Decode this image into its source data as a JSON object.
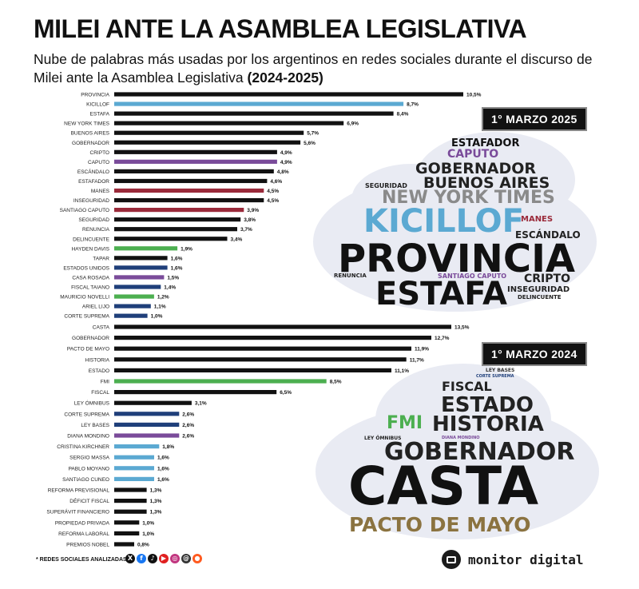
{
  "header": {
    "title": "MILEI ANTE LA ASAMBLEA LEGISLATIVA",
    "subtitle": "Nube de palabras más usadas por los argentinos en redes sociales durante el discurso de Milei ante la Asamblea Legislativa",
    "subtitle_years": "(2024-2025)"
  },
  "colors": {
    "default_bar": "#111111",
    "blue": "#5ba9d2",
    "purple": "#7a4b9a",
    "red": "#9a2a3a",
    "green": "#4caf50",
    "navy": "#1f3f7a",
    "cloud_bg": "#e9ebf3",
    "casta_brown": "#8b7340"
  },
  "chart_data": [
    {
      "type": "bar",
      "orientation": "horizontal",
      "period": "1° MARZO 2025",
      "xlim": [
        0,
        10.5
      ],
      "unit": "%",
      "categories": [
        "PROVINCIA",
        "KICILLOF",
        "ESTAFA",
        "NEW YORK TIMES",
        "BUENOS AIRES",
        "GOBERNADOR",
        "CRIPTO",
        "CAPUTO",
        "ESCÁNDALO",
        "ESTAFADOR",
        "MANES",
        "INSEGURIDAD",
        "SANTIAGO CAPUTO",
        "SEGURIDAD",
        "RENUNCIA",
        "DELINCUENTE",
        "HAYDEN DAVIS",
        "TAPAR",
        "ESTADOS UNIDOS",
        "CASA ROSADA",
        "FISCAL TAIANO",
        "MAURICIO NOVELLI",
        "ARIEL LIJO",
        "CORTE SUPREMA"
      ],
      "values": [
        10.5,
        8.7,
        8.4,
        6.9,
        5.7,
        5.6,
        4.9,
        4.9,
        4.8,
        4.6,
        4.5,
        4.5,
        3.9,
        3.8,
        3.7,
        3.4,
        1.9,
        1.6,
        1.6,
        1.5,
        1.4,
        1.2,
        1.1,
        1.0
      ],
      "value_labels": [
        "10,5%",
        "8,7%",
        "8,4%",
        "6,9%",
        "5,7%",
        "5,6%",
        "4,9%",
        "4,9%",
        "4,8%",
        "4,6%",
        "4,5%",
        "4,5%",
        "3,9%",
        "3,8%",
        "3,7%",
        "3,4%",
        "1,9%",
        "1,6%",
        "1,6%",
        "1,5%",
        "1,4%",
        "1,2%",
        "1,1%",
        "1,0%"
      ],
      "bar_colors": [
        "black",
        "blue",
        "black",
        "black",
        "black",
        "black",
        "black",
        "purple",
        "black",
        "black",
        "red",
        "black",
        "red",
        "black",
        "black",
        "black",
        "green",
        "black",
        "navy",
        "purple",
        "navy",
        "green",
        "navy",
        "navy"
      ]
    },
    {
      "type": "bar",
      "orientation": "horizontal",
      "period": "1° MARZO 2024",
      "xlim": [
        0,
        13.5
      ],
      "unit": "%",
      "categories": [
        "CASTA",
        "GOBERNADOR",
        "PACTO DE MAYO",
        "HISTORIA",
        "ESTADO",
        "FMI",
        "FISCAL",
        "LEY ÓMNIBUS",
        "CORTE SUPREMA",
        "LEY BASES",
        "DIANA MONDINO",
        "CRISTINA KIRCHNER",
        "SERGIO MASSA",
        "PABLO MOYANO",
        "SANTIAGO CUNEO",
        "REFORMA PREVISIONAL",
        "DÉFICIT FISCAL",
        "SUPERÁVIT FINANCIERO",
        "PROPIEDAD PRIVADA",
        "REFORMA LABORAL",
        "PREMIOS NOBEL"
      ],
      "values": [
        13.5,
        12.7,
        11.9,
        11.7,
        11.1,
        8.5,
        6.5,
        3.1,
        2.6,
        2.6,
        2.6,
        1.8,
        1.6,
        1.6,
        1.6,
        1.3,
        1.3,
        1.3,
        1.0,
        1.0,
        0.8
      ],
      "value_labels": [
        "13,5%",
        "12,7%",
        "11,9%",
        "11,7%",
        "11,1%",
        "8,5%",
        "6,5%",
        "3,1%",
        "2,6%",
        "2,6%",
        "2,6%",
        "1,8%",
        "1,6%",
        "1,6%",
        "1,6%",
        "1,3%",
        "1,3%",
        "1,3%",
        "1,0%",
        "1,0%",
        "0,8%"
      ],
      "bar_colors": [
        "black",
        "black",
        "black",
        "black",
        "black",
        "green",
        "black",
        "black",
        "navy",
        "navy",
        "purple",
        "blue",
        "blue",
        "blue",
        "blue",
        "black",
        "black",
        "black",
        "black",
        "black",
        "black"
      ]
    }
  ],
  "clouds": {
    "cloud_2025": {
      "badge": "1° MARZO 2025",
      "words": [
        {
          "text": "ESTAFADOR",
          "color": "#111111",
          "size": 13
        },
        {
          "text": "CAPUTO",
          "color": "#7a4b9a",
          "size": 14
        },
        {
          "text": "GOBERNADOR",
          "color": "#222222",
          "size": 19
        },
        {
          "text": "BUENOS AIRES",
          "color": "#222222",
          "size": 19
        },
        {
          "text": "SEGURIDAD",
          "color": "#222222",
          "size": 8
        },
        {
          "text": "NEW YORK TIMES",
          "color": "#8a8a8a",
          "size": 22
        },
        {
          "text": "KICILLOF",
          "color": "#5ba9d2",
          "size": 40
        },
        {
          "text": "MANES",
          "color": "#9a2a3a",
          "size": 10
        },
        {
          "text": "ESCÁNDALO",
          "color": "#222222",
          "size": 12
        },
        {
          "text": "PROVINCIA",
          "color": "#111111",
          "size": 48
        },
        {
          "text": "RENUNCIA",
          "color": "#222222",
          "size": 7
        },
        {
          "text": "SANTIAGO CAPUTO",
          "color": "#7a4b9a",
          "size": 8
        },
        {
          "text": "CRIPTO",
          "color": "#222222",
          "size": 14
        },
        {
          "text": "INSEGURIDAD",
          "color": "#222222",
          "size": 10
        },
        {
          "text": "ESTAFA",
          "color": "#111111",
          "size": 40
        },
        {
          "text": "DELINCUENTE",
          "color": "#222222",
          "size": 7
        }
      ]
    },
    "cloud_2024": {
      "badge": "1° MARZO 2024",
      "words": [
        {
          "text": "LEY BASES",
          "color": "#333333",
          "size": 6
        },
        {
          "text": "CORTE SUPREMA",
          "color": "#1f3f7a",
          "size": 5
        },
        {
          "text": "FISCAL",
          "color": "#222222",
          "size": 16
        },
        {
          "text": "ESTADO",
          "color": "#222222",
          "size": 26
        },
        {
          "text": "FMI",
          "color": "#4caf50",
          "size": 22
        },
        {
          "text": "HISTORIA",
          "color": "#222222",
          "size": 26
        },
        {
          "text": "LEY ÓMNIBUS",
          "color": "#222222",
          "size": 6
        },
        {
          "text": "DIANA MONDINO",
          "color": "#7a4b9a",
          "size": 5
        },
        {
          "text": "GOBERNADOR",
          "color": "#222222",
          "size": 30
        },
        {
          "text": "CASTA",
          "color": "#111111",
          "size": 66
        },
        {
          "text": "PACTO DE MAYO",
          "color": "#8b7340",
          "size": 25
        }
      ]
    }
  },
  "footer": {
    "note": "* REDES SOCIALES ANALIZADAS",
    "social_icons": [
      {
        "name": "x-icon",
        "glyph": "X",
        "color": "#111111"
      },
      {
        "name": "facebook-icon",
        "glyph": "f",
        "color": "#1877f2"
      },
      {
        "name": "tiktok-icon",
        "glyph": "♪",
        "color": "#111111"
      },
      {
        "name": "youtube-icon",
        "glyph": "▶",
        "color": "#e02020"
      },
      {
        "name": "instagram-icon",
        "glyph": "◎",
        "color": "#c1357f"
      },
      {
        "name": "threads-icon",
        "glyph": "@",
        "color": "#333333"
      },
      {
        "name": "reddit-icon",
        "glyph": "●",
        "color": "#ff5a1f"
      }
    ],
    "brand": "monitor digital"
  }
}
